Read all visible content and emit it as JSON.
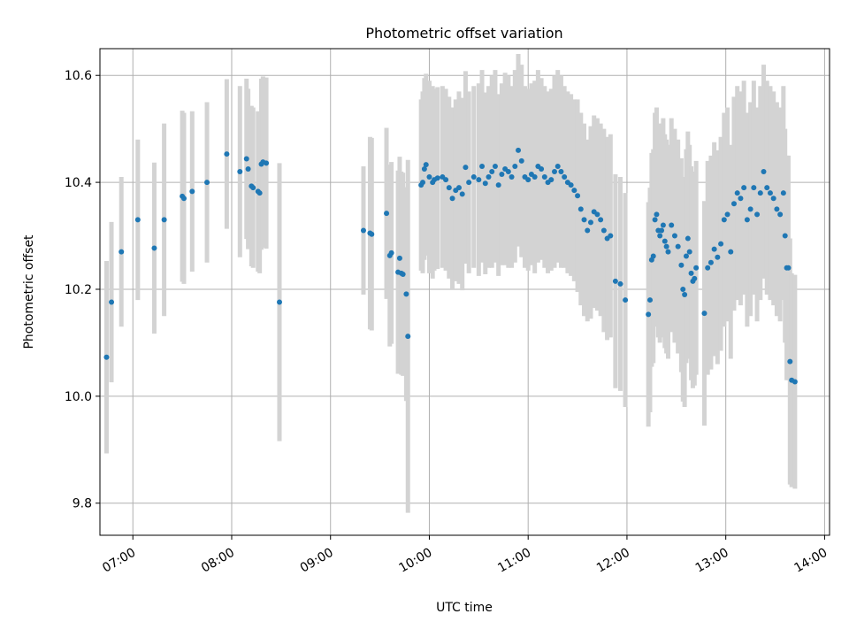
{
  "chart_data": {
    "type": "scatter",
    "title": "Photometric offset variation",
    "xlabel": "UTC time",
    "ylabel": "Photometric offset",
    "x_tick_labels": [
      "07:00",
      "08:00",
      "09:00",
      "10:00",
      "11:00",
      "12:00",
      "13:00",
      "14:00"
    ],
    "y_tick_labels": [
      "9.8",
      "10.0",
      "10.2",
      "10.4",
      "10.6"
    ],
    "xlim": [
      "06:40",
      "14:03"
    ],
    "ylim": [
      9.74,
      10.65
    ],
    "grid": true,
    "colors": {
      "point": "#1f77b4",
      "errorbar": "#d3d3d3",
      "grid": "#b0b0b0"
    },
    "points": [
      [
        "06:44",
        10.073,
        0.18
      ],
      [
        "06:47",
        10.176,
        0.15
      ],
      [
        "06:53",
        10.27,
        0.14
      ],
      [
        "07:03",
        10.33,
        0.15
      ],
      [
        "07:13",
        10.277,
        0.16
      ],
      [
        "07:19",
        10.33,
        0.18
      ],
      [
        "07:30",
        10.374,
        0.16
      ],
      [
        "07:31",
        10.37,
        0.16
      ],
      [
        "07:36",
        10.383,
        0.15
      ],
      [
        "07:45",
        10.4,
        0.15
      ],
      [
        "07:57",
        10.453,
        0.14
      ],
      [
        "08:05",
        10.42,
        0.16
      ],
      [
        "08:09",
        10.444,
        0.15
      ],
      [
        "08:10",
        10.425,
        0.15
      ],
      [
        "08:12",
        10.393,
        0.15
      ],
      [
        "08:13",
        10.39,
        0.15
      ],
      [
        "08:16",
        10.383,
        0.15
      ],
      [
        "08:17",
        10.38,
        0.15
      ],
      [
        "08:18",
        10.434,
        0.16
      ],
      [
        "08:19",
        10.438,
        0.16
      ],
      [
        "08:21",
        10.436,
        0.16
      ],
      [
        "08:29",
        10.176,
        0.26
      ],
      [
        "09:20",
        10.31,
        0.12
      ],
      [
        "09:24",
        10.305,
        0.18
      ],
      [
        "09:25",
        10.303,
        0.18
      ],
      [
        "09:34",
        10.342,
        0.16
      ],
      [
        "09:36",
        10.263,
        0.17
      ],
      [
        "09:37",
        10.268,
        0.17
      ],
      [
        "09:41",
        10.232,
        0.19
      ],
      [
        "09:42",
        10.258,
        0.19
      ],
      [
        "09:43",
        10.23,
        0.19
      ],
      [
        "09:44",
        10.228,
        0.19
      ],
      [
        "09:46",
        10.191,
        0.2
      ],
      [
        "09:47",
        10.112,
        0.33
      ],
      [
        "09:55",
        10.395,
        0.16
      ],
      [
        "09:56",
        10.4,
        0.17
      ],
      [
        "09:57",
        10.425,
        0.17
      ],
      [
        "09:58",
        10.433,
        0.17
      ],
      [
        "10:00",
        10.41,
        0.18
      ],
      [
        "10:02",
        10.4,
        0.18
      ],
      [
        "10:03",
        10.405,
        0.17
      ],
      [
        "10:05",
        10.408,
        0.17
      ],
      [
        "10:08",
        10.41,
        0.17
      ],
      [
        "10:10",
        10.405,
        0.17
      ],
      [
        "10:12",
        10.39,
        0.17
      ],
      [
        "10:14",
        10.37,
        0.17
      ],
      [
        "10:16",
        10.385,
        0.17
      ],
      [
        "10:18",
        10.39,
        0.18
      ],
      [
        "10:20",
        10.378,
        0.18
      ],
      [
        "10:22",
        10.428,
        0.18
      ],
      [
        "10:24",
        10.4,
        0.17
      ],
      [
        "10:27",
        10.41,
        0.17
      ],
      [
        "10:30",
        10.405,
        0.18
      ],
      [
        "10:32",
        10.43,
        0.18
      ],
      [
        "10:34",
        10.398,
        0.17
      ],
      [
        "10:36",
        10.41,
        0.17
      ],
      [
        "10:38",
        10.42,
        0.18
      ],
      [
        "10:40",
        10.43,
        0.18
      ],
      [
        "10:42",
        10.395,
        0.17
      ],
      [
        "10:44",
        10.415,
        0.17
      ],
      [
        "10:46",
        10.425,
        0.18
      ],
      [
        "10:48",
        10.42,
        0.18
      ],
      [
        "10:50",
        10.41,
        0.17
      ],
      [
        "10:52",
        10.43,
        0.18
      ],
      [
        "10:54",
        10.46,
        0.18
      ],
      [
        "10:56",
        10.44,
        0.18
      ],
      [
        "10:58",
        10.41,
        0.17
      ],
      [
        "11:00",
        10.405,
        0.17
      ],
      [
        "11:02",
        10.415,
        0.17
      ],
      [
        "11:04",
        10.41,
        0.18
      ],
      [
        "11:06",
        10.43,
        0.18
      ],
      [
        "11:08",
        10.425,
        0.17
      ],
      [
        "11:10",
        10.41,
        0.17
      ],
      [
        "11:12",
        10.4,
        0.17
      ],
      [
        "11:14",
        10.405,
        0.17
      ],
      [
        "11:16",
        10.42,
        0.18
      ],
      [
        "11:18",
        10.43,
        0.18
      ],
      [
        "11:20",
        10.42,
        0.18
      ],
      [
        "11:22",
        10.41,
        0.17
      ],
      [
        "11:24",
        10.4,
        0.17
      ],
      [
        "11:26",
        10.395,
        0.17
      ],
      [
        "11:28",
        10.385,
        0.17
      ],
      [
        "11:30",
        10.375,
        0.18
      ],
      [
        "11:32",
        10.35,
        0.18
      ],
      [
        "11:34",
        10.33,
        0.18
      ],
      [
        "11:36",
        10.31,
        0.17
      ],
      [
        "11:38",
        10.325,
        0.18
      ],
      [
        "11:40",
        10.345,
        0.18
      ],
      [
        "11:42",
        10.34,
        0.18
      ],
      [
        "11:44",
        10.33,
        0.18
      ],
      [
        "11:46",
        10.31,
        0.19
      ],
      [
        "11:48",
        10.295,
        0.19
      ],
      [
        "11:50",
        10.3,
        0.19
      ],
      [
        "11:53",
        10.215,
        0.2
      ],
      [
        "11:56",
        10.21,
        0.2
      ],
      [
        "11:59",
        10.18,
        0.2
      ],
      [
        "12:13",
        10.153,
        0.21
      ],
      [
        "12:14",
        10.18,
        0.21
      ],
      [
        "12:15",
        10.255,
        0.2
      ],
      [
        "12:16",
        10.262,
        0.2
      ],
      [
        "12:17",
        10.33,
        0.2
      ],
      [
        "12:18",
        10.34,
        0.2
      ],
      [
        "12:19",
        10.31,
        0.2
      ],
      [
        "12:20",
        10.3,
        0.2
      ],
      [
        "12:21",
        10.31,
        0.2
      ],
      [
        "12:22",
        10.32,
        0.2
      ],
      [
        "12:23",
        10.29,
        0.2
      ],
      [
        "12:24",
        10.28,
        0.2
      ],
      [
        "12:25",
        10.27,
        0.2
      ],
      [
        "12:27",
        10.32,
        0.2
      ],
      [
        "12:29",
        10.3,
        0.2
      ],
      [
        "12:31",
        10.28,
        0.2
      ],
      [
        "12:33",
        10.245,
        0.2
      ],
      [
        "12:34",
        10.2,
        0.21
      ],
      [
        "12:35",
        10.19,
        0.21
      ],
      [
        "12:36",
        10.262,
        0.2
      ],
      [
        "12:37",
        10.295,
        0.2
      ],
      [
        "12:38",
        10.27,
        0.2
      ],
      [
        "12:39",
        10.23,
        0.2
      ],
      [
        "12:40",
        10.215,
        0.2
      ],
      [
        "12:41",
        10.22,
        0.2
      ],
      [
        "12:42",
        10.24,
        0.2
      ],
      [
        "12:47",
        10.155,
        0.21
      ],
      [
        "12:49",
        10.24,
        0.2
      ],
      [
        "12:51",
        10.25,
        0.2
      ],
      [
        "12:53",
        10.275,
        0.2
      ],
      [
        "12:55",
        10.26,
        0.2
      ],
      [
        "12:57",
        10.285,
        0.2
      ],
      [
        "12:59",
        10.33,
        0.2
      ],
      [
        "13:01",
        10.34,
        0.2
      ],
      [
        "13:03",
        10.27,
        0.2
      ],
      [
        "13:05",
        10.36,
        0.2
      ],
      [
        "13:07",
        10.38,
        0.2
      ],
      [
        "13:09",
        10.37,
        0.2
      ],
      [
        "13:11",
        10.39,
        0.2
      ],
      [
        "13:13",
        10.33,
        0.2
      ],
      [
        "13:15",
        10.35,
        0.2
      ],
      [
        "13:17",
        10.39,
        0.2
      ],
      [
        "13:19",
        10.34,
        0.2
      ],
      [
        "13:21",
        10.38,
        0.2
      ],
      [
        "13:23",
        10.42,
        0.2
      ],
      [
        "13:25",
        10.39,
        0.2
      ],
      [
        "13:27",
        10.38,
        0.2
      ],
      [
        "13:29",
        10.37,
        0.2
      ],
      [
        "13:31",
        10.35,
        0.2
      ],
      [
        "13:33",
        10.34,
        0.2
      ],
      [
        "13:35",
        10.38,
        0.2
      ],
      [
        "13:36",
        10.3,
        0.2
      ],
      [
        "13:37",
        10.24,
        0.21
      ],
      [
        "13:38",
        10.24,
        0.21
      ],
      [
        "13:39",
        10.065,
        0.23
      ],
      [
        "13:40",
        10.03,
        0.2
      ],
      [
        "13:42",
        10.027,
        0.2
      ]
    ]
  }
}
